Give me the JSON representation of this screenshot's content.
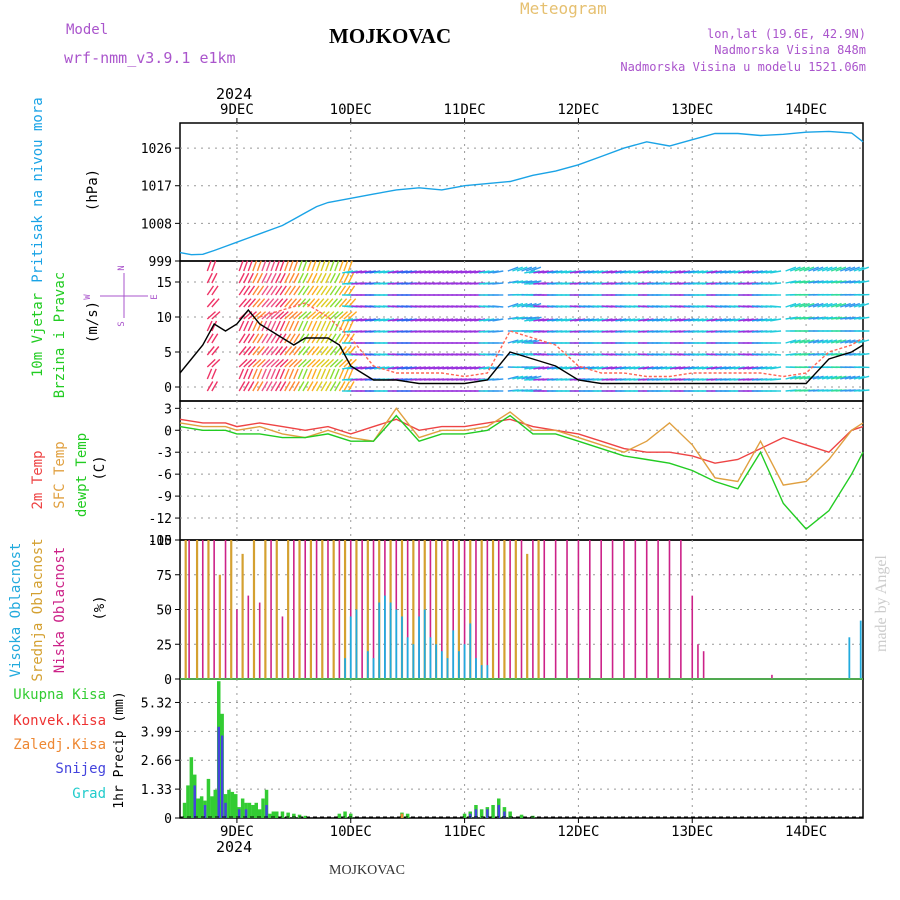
{
  "header": {
    "model_label": "Model",
    "model_name": "wrf-nmm_v3.9.1 e1km",
    "title": "MOJKOVAC",
    "meteogram": "Meteogram",
    "lonlat": "lon,lat (19.6E, 42.9N)",
    "elevation": "Nadmorska Visina 848m",
    "model_elevation": "Nadmorska Visina u modelu 1521.06m",
    "year_top": "2024",
    "year_bottom": "2024",
    "footer": "MOJKOVAC",
    "credit": "made by Angel"
  },
  "colors": {
    "pressure": "#1aa3e6",
    "temp2m": "#ee4444",
    "sfc": "#e0a040",
    "dewpt": "#22cc22",
    "high": "#22aadd",
    "middle": "#d4a030",
    "low": "#cc2288",
    "total": "#33cc33",
    "conv": "#ee3333",
    "frozen": "#ee8833",
    "snow": "#4444dd",
    "grad": "#22cccc"
  },
  "chart_data": {
    "type": "meteogram",
    "x_axis": {
      "day_labels": [
        "9DEC",
        "10DEC",
        "11DEC",
        "12DEC",
        "13DEC",
        "14DEC"
      ],
      "range_days": [
        -0.5,
        5.5
      ]
    },
    "panels": [
      {
        "id": "pressure",
        "type": "line",
        "ylabel_name": "Pritisak na nivou mora",
        "unit": "(hPa)",
        "yticks": [
          999,
          1008,
          1017,
          1026
        ],
        "ylim": [
          999,
          1032
        ],
        "series": [
          {
            "x": [
              -0.5,
              -0.4,
              -0.3,
              -0.2,
              -0.1,
              0.0,
              0.1,
              0.2,
              0.3,
              0.4,
              0.5,
              0.6,
              0.7,
              0.8,
              0.9,
              1.0,
              1.2,
              1.4,
              1.6,
              1.8,
              2.0,
              2.2,
              2.4,
              2.6,
              2.8,
              3.0,
              3.2,
              3.4,
              3.6,
              3.8,
              4.0,
              4.2,
              4.4,
              4.6,
              4.8,
              5.0,
              5.2,
              5.4,
              5.5
            ],
            "y": [
              1001,
              1000.5,
              1000.6,
              1001.5,
              1002.5,
              1003.5,
              1004.5,
              1005.5,
              1006.5,
              1007.5,
              1009,
              1010.5,
              1012,
              1013,
              1013.5,
              1014,
              1015,
              1016,
              1016.5,
              1016,
              1017,
              1017.5,
              1018,
              1019.5,
              1020.5,
              1022,
              1024,
              1026,
              1027.5,
              1026.5,
              1028,
              1029.5,
              1029.5,
              1029,
              1029.3,
              1029.8,
              1030,
              1029.6,
              1027.5
            ]
          }
        ]
      },
      {
        "id": "wind",
        "type": "barbs_line",
        "ylabel_name": "10m Vjetar",
        "ylabel_sub": "Brzina i Pravac",
        "unit": "(m/s)",
        "compass": [
          "N",
          "W",
          "E",
          "S"
        ],
        "yticks": [
          0,
          5,
          10,
          15
        ],
        "ylim": [
          -2,
          18
        ],
        "series": [
          {
            "name": "speed",
            "x": [
              -0.5,
              -0.4,
              -0.3,
              -0.2,
              -0.1,
              0.0,
              0.1,
              0.2,
              0.3,
              0.4,
              0.5,
              0.6,
              0.7,
              0.8,
              0.9,
              1.0,
              1.1,
              1.2,
              1.4,
              1.6,
              1.8,
              2.0,
              2.2,
              2.4,
              2.6,
              2.8,
              3.0,
              3.2,
              3.4,
              3.6,
              3.8,
              4.0,
              4.2,
              4.4,
              4.6,
              4.8,
              5.0,
              5.2,
              5.4,
              5.5
            ],
            "y": [
              2,
              4,
              6,
              9,
              8,
              9,
              11,
              9,
              8,
              7,
              6,
              7,
              7,
              7,
              6,
              3,
              2,
              1,
              1,
              0.5,
              0.5,
              0.5,
              1,
              5,
              4,
              3,
              1,
              0.5,
              0.5,
              0.5,
              0.5,
              0.5,
              0.5,
              0.5,
              0.5,
              0.5,
              0.5,
              4,
              5,
              6
            ]
          },
          {
            "name": "gust",
            "x": [
              0.2,
              0.4,
              0.6,
              0.8,
              1.0,
              1.1,
              1.2,
              1.4,
              1.6,
              1.8,
              2.0,
              2.2,
              2.4,
              2.6,
              2.8,
              3.0,
              3.2,
              3.4,
              3.6,
              3.8,
              4.0,
              4.2,
              4.4,
              4.6,
              4.8,
              5.0,
              5.2,
              5.4,
              5.5
            ],
            "y": [
              10,
              11,
              12,
              10,
              7,
              5,
              3,
              2,
              2,
              2,
              1.5,
              2,
              8,
              7,
              6,
              3,
              2,
              2,
              1.5,
              1.5,
              2,
              2,
              2,
              2,
              1.5,
              2,
              5,
              6,
              7
            ]
          }
        ]
      },
      {
        "id": "temperature",
        "type": "line",
        "ylabel_names": [
          "2m Temp",
          "SFC Temp",
          "dewpt Temp"
        ],
        "unit": "(C)",
        "yticks": [
          3,
          0,
          -3,
          -6,
          -9,
          -12,
          -15
        ],
        "ylim": [
          -15,
          4
        ],
        "series": [
          {
            "name": "2m Temp",
            "x": [
              -0.5,
              -0.3,
              -0.1,
              0.0,
              0.2,
              0.4,
              0.6,
              0.8,
              1.0,
              1.2,
              1.4,
              1.6,
              1.8,
              2.0,
              2.2,
              2.4,
              2.6,
              2.8,
              3.0,
              3.2,
              3.4,
              3.6,
              3.8,
              4.0,
              4.2,
              4.4,
              4.6,
              4.8,
              5.0,
              5.2,
              5.4,
              5.5
            ],
            "y": [
              1.5,
              1,
              1,
              0.5,
              1,
              0.5,
              0,
              0.5,
              -0.5,
              0.5,
              1.5,
              0,
              0.5,
              0.5,
              1,
              1.5,
              0.5,
              0,
              -0.5,
              -1.5,
              -2.5,
              -3,
              -3,
              -3.5,
              -4.5,
              -4,
              -2.5,
              -1,
              -2,
              -3,
              0,
              0.5
            ]
          },
          {
            "name": "SFC Temp",
            "x": [
              -0.5,
              -0.3,
              -0.1,
              0.0,
              0.2,
              0.4,
              0.6,
              0.8,
              1.0,
              1.2,
              1.4,
              1.6,
              1.8,
              2.0,
              2.2,
              2.4,
              2.6,
              2.8,
              3.0,
              3.2,
              3.4,
              3.6,
              3.8,
              4.0,
              4.2,
              4.4,
              4.6,
              4.8,
              5.0,
              5.2,
              5.4,
              5.5
            ],
            "y": [
              1,
              0.5,
              0.5,
              0,
              0.5,
              -0.5,
              -1,
              0,
              -1,
              -1.5,
              3,
              -1,
              0,
              0,
              0.5,
              2.5,
              0,
              0,
              -1,
              -2,
              -3,
              -1.5,
              1,
              -2,
              -6.5,
              -7,
              -1.5,
              -7.5,
              -7,
              -4,
              0,
              1
            ]
          },
          {
            "name": "dewpt Temp",
            "x": [
              -0.5,
              -0.3,
              -0.1,
              0.0,
              0.2,
              0.4,
              0.6,
              0.8,
              1.0,
              1.2,
              1.4,
              1.6,
              1.8,
              2.0,
              2.2,
              2.4,
              2.6,
              2.8,
              3.0,
              3.2,
              3.4,
              3.6,
              3.8,
              4.0,
              4.2,
              4.4,
              4.6,
              4.8,
              5.0,
              5.2,
              5.4,
              5.5
            ],
            "y": [
              0.5,
              0,
              0,
              -0.5,
              -0.5,
              -1,
              -1,
              -0.5,
              -1.5,
              -1.5,
              2,
              -1.5,
              -0.5,
              -0.5,
              0,
              2,
              -0.5,
              -0.5,
              -1.5,
              -2.5,
              -3.5,
              -4,
              -4.5,
              -5.5,
              -7,
              -8,
              -3,
              -10,
              -13.5,
              -11,
              -6,
              -3
            ]
          }
        ]
      },
      {
        "id": "cloud",
        "type": "bar",
        "ylabel_names": [
          "Visoka Oblacnost",
          "Srednja Oblacnost",
          "Niska Oblacnost"
        ],
        "unit": "(%)",
        "yticks": [
          0,
          25,
          50,
          75,
          100
        ],
        "ylim": [
          0,
          100
        ],
        "series": [
          {
            "name": "Niska Oblacnost",
            "x": [
              -0.42,
              -0.3,
              -0.2,
              -0.1,
              0.0,
              0.1,
              0.2,
              0.3,
              0.4,
              0.5,
              0.6,
              0.7,
              0.8,
              0.9,
              1.0,
              1.1,
              1.2,
              1.3,
              1.4,
              1.5,
              1.6,
              1.7,
              1.8,
              1.9,
              2.0,
              2.1,
              2.2,
              2.3,
              2.4,
              2.5,
              2.6,
              2.7,
              2.8,
              2.9,
              3.0,
              3.1,
              3.2,
              3.3,
              3.4,
              3.5,
              3.6,
              3.7,
              3.8,
              3.9,
              4.0,
              4.05,
              4.1,
              4.7
            ],
            "y": [
              100,
              100,
              100,
              100,
              50,
              60,
              55,
              100,
              45,
              100,
              100,
              100,
              100,
              100,
              100,
              100,
              100,
              100,
              100,
              100,
              100,
              100,
              100,
              100,
              100,
              100,
              100,
              100,
              100,
              100,
              100,
              100,
              100,
              100,
              100,
              100,
              100,
              100,
              100,
              100,
              100,
              100,
              100,
              100,
              60,
              25,
              20,
              3
            ]
          },
          {
            "name": "Srednja Oblacnost",
            "x": [
              -0.45,
              -0.35,
              -0.25,
              -0.15,
              -0.05,
              0.05,
              0.15,
              0.25,
              0.35,
              0.45,
              0.55,
              0.65,
              0.75,
              0.85,
              0.95,
              1.05,
              1.15,
              1.25,
              1.35,
              1.45,
              1.55,
              1.65,
              1.75,
              1.85,
              1.95,
              2.05,
              2.15,
              2.25,
              2.35,
              2.45,
              2.55,
              2.65
            ],
            "y": [
              100,
              100,
              100,
              75,
              100,
              90,
              100,
              100,
              100,
              100,
              100,
              100,
              100,
              100,
              100,
              100,
              100,
              100,
              100,
              100,
              100,
              100,
              100,
              100,
              100,
              100,
              100,
              100,
              100,
              100,
              90,
              100
            ]
          },
          {
            "name": "Visoka Oblacnost",
            "x": [
              0.95,
              1.0,
              1.05,
              1.15,
              1.2,
              1.25,
              1.3,
              1.35,
              1.4,
              1.45,
              1.5,
              1.55,
              1.6,
              1.65,
              1.7,
              1.75,
              1.8,
              1.85,
              1.9,
              1.95,
              2.0,
              2.05,
              2.1,
              2.15,
              2.2,
              5.38,
              5.48
            ],
            "y": [
              15,
              45,
              50,
              20,
              15,
              55,
              60,
              55,
              50,
              45,
              30,
              25,
              45,
              50,
              30,
              25,
              20,
              15,
              35,
              20,
              25,
              40,
              15,
              10,
              10,
              30,
              42
            ]
          }
        ]
      },
      {
        "id": "precip",
        "type": "bar",
        "ylabel_names": [
          "Ukupna Kisa",
          "Konvek.Kisa",
          "Zaledj.Kisa",
          "Snijeg",
          "Grad"
        ],
        "unit": "1hr Precip (mm)",
        "yticks": [
          0,
          1.33,
          2.66,
          3.99,
          5.32
        ],
        "ylim": [
          0,
          6.4
        ],
        "series": [
          {
            "name": "Ukupna Kisa",
            "x": [
              -0.46,
              -0.43,
              -0.4,
              -0.37,
              -0.34,
              -0.31,
              -0.28,
              -0.25,
              -0.22,
              -0.19,
              -0.16,
              -0.13,
              -0.1,
              -0.07,
              -0.04,
              -0.01,
              0.02,
              0.05,
              0.08,
              0.11,
              0.14,
              0.17,
              0.2,
              0.23,
              0.26,
              0.29,
              0.32,
              0.35,
              0.4,
              0.45,
              0.5,
              0.55,
              0.6,
              0.9,
              0.95,
              1.0,
              1.45,
              1.5,
              2.0,
              2.05,
              2.1,
              2.15,
              2.2,
              2.25,
              2.3,
              2.35,
              2.4,
              2.5,
              2.6
            ],
            "y": [
              0.7,
              1.5,
              2.8,
              2.0,
              0.9,
              1.0,
              0.8,
              1.8,
              1.0,
              1.3,
              6.3,
              4.8,
              1.1,
              1.3,
              1.2,
              1.1,
              0.5,
              0.9,
              0.7,
              0.7,
              0.6,
              0.7,
              0.4,
              0.9,
              1.3,
              0.2,
              0.3,
              0.3,
              0.3,
              0.25,
              0.2,
              0.15,
              0.1,
              0.2,
              0.3,
              0.2,
              0.25,
              0.2,
              0.2,
              0.3,
              0.6,
              0.4,
              0.5,
              0.6,
              0.9,
              0.5,
              0.3,
              0.15,
              0.1
            ]
          },
          {
            "name": "Snijeg",
            "x": [
              -0.37,
              -0.28,
              -0.16,
              -0.13,
              -0.1,
              0.02,
              0.08,
              0.26,
              2.05,
              2.1,
              2.2,
              2.3,
              2.35
            ],
            "y": [
              1.5,
              0.6,
              4.2,
              3.8,
              0.7,
              0.4,
              0.4,
              0.6,
              0.2,
              0.4,
              0.4,
              0.6,
              0.3
            ]
          },
          {
            "name": "Zaledj.Kisa",
            "x": [
              1.45
            ],
            "y": [
              0.2
            ]
          }
        ]
      }
    ]
  }
}
